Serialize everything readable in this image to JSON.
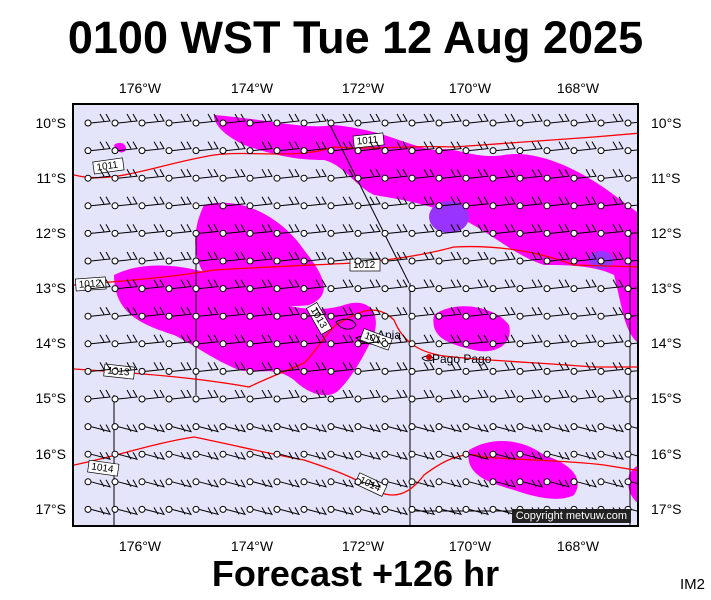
{
  "header": {
    "title": "0100 WST Tue 12 Aug 2025"
  },
  "footer": {
    "forecast": "Forecast +126 hr",
    "code": "IM2"
  },
  "map": {
    "copyright": "Copyright metvuw.com",
    "lon_ticks": [
      "176°W",
      "174°W",
      "172°W",
      "170°W",
      "168°W"
    ],
    "lat_ticks": [
      "10°S",
      "11°S",
      "12°S",
      "13°S",
      "14°S",
      "15°S",
      "16°S",
      "17°S"
    ],
    "isobar_labels": [
      "1011",
      "1011",
      "1012",
      "1012",
      "1013",
      "1013",
      "1013",
      "1014",
      "1014"
    ],
    "places": [
      "Apia",
      "Pago Pago"
    ],
    "colors": {
      "ocean": "#e4e4fb",
      "rain_light": "#ff00ff",
      "rain_heavy": "#9933ff",
      "isobar": "#ff0000"
    }
  }
}
